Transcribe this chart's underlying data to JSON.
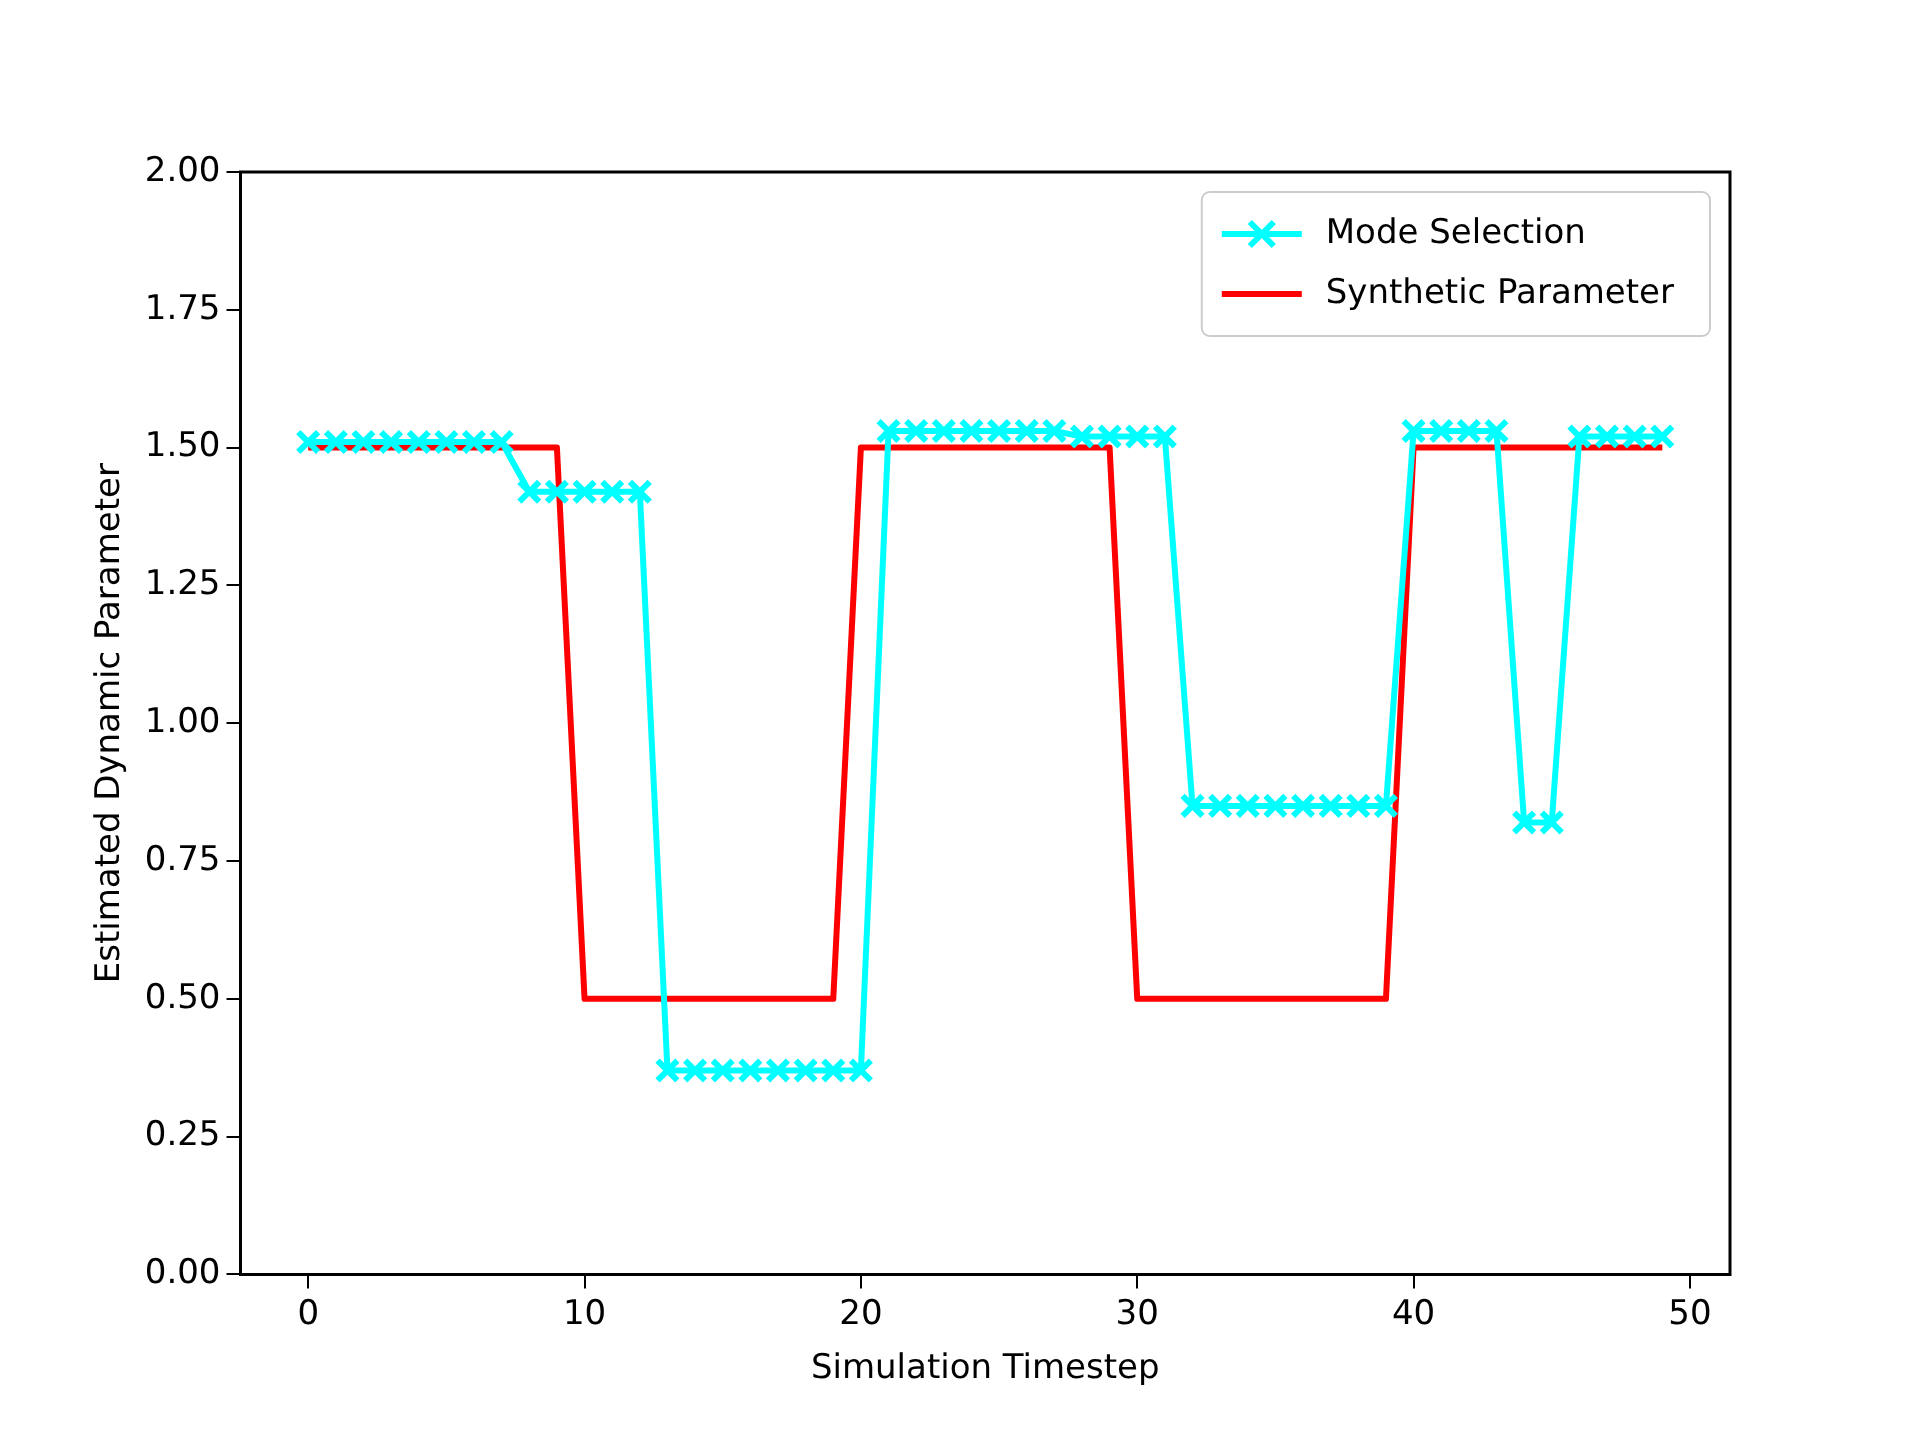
{
  "chart_data": {
    "type": "line",
    "xlabel": "Simulation Timestep",
    "ylabel": "Estimated Dynamic Parameter",
    "x": [
      0,
      1,
      2,
      3,
      4,
      5,
      6,
      7,
      8,
      9,
      10,
      11,
      12,
      13,
      14,
      15,
      16,
      17,
      18,
      19,
      20,
      21,
      22,
      23,
      24,
      25,
      26,
      27,
      28,
      29,
      30,
      31,
      32,
      33,
      34,
      35,
      36,
      37,
      38,
      39,
      40,
      41,
      42,
      43,
      44,
      45,
      46,
      47,
      48,
      49
    ],
    "series": [
      {
        "name": "Mode Selection",
        "color": "#00ffff",
        "marker": "cross",
        "values": [
          1.51,
          1.51,
          1.51,
          1.51,
          1.51,
          1.51,
          1.51,
          1.51,
          1.42,
          1.42,
          1.42,
          1.42,
          1.42,
          0.37,
          0.37,
          0.37,
          0.37,
          0.37,
          0.37,
          0.37,
          0.37,
          1.53,
          1.53,
          1.53,
          1.53,
          1.53,
          1.53,
          1.53,
          1.52,
          1.52,
          1.52,
          1.52,
          0.85,
          0.85,
          0.85,
          0.85,
          0.85,
          0.85,
          0.85,
          0.85,
          1.53,
          1.53,
          1.53,
          1.53,
          0.82,
          0.82,
          1.52,
          1.52,
          1.52,
          1.52
        ]
      },
      {
        "name": "Synthetic Parameter",
        "color": "#ff0000",
        "marker": "none",
        "values": [
          1.5,
          1.5,
          1.5,
          1.5,
          1.5,
          1.5,
          1.5,
          1.5,
          1.5,
          1.5,
          0.5,
          0.5,
          0.5,
          0.5,
          0.5,
          0.5,
          0.5,
          0.5,
          0.5,
          0.5,
          1.5,
          1.5,
          1.5,
          1.5,
          1.5,
          1.5,
          1.5,
          1.5,
          1.5,
          1.5,
          0.5,
          0.5,
          0.5,
          0.5,
          0.5,
          0.5,
          0.5,
          0.5,
          0.5,
          0.5,
          1.5,
          1.5,
          1.5,
          1.5,
          1.5,
          1.5,
          1.5,
          1.5,
          1.5,
          1.5
        ]
      }
    ],
    "xlim": [
      -2.45,
      51.45
    ],
    "xticks": [
      0,
      10,
      20,
      30,
      40,
      50
    ],
    "ylim": [
      0,
      2
    ],
    "yticks": [
      {
        "value": 0,
        "label": "0.00"
      },
      {
        "value": 0.25,
        "label": "0.25"
      },
      {
        "value": 0.5,
        "label": "0.50"
      },
      {
        "value": 0.75,
        "label": "0.75"
      },
      {
        "value": 1,
        "label": "1.00"
      },
      {
        "value": 1.25,
        "label": "1.25"
      },
      {
        "value": 1.5,
        "label": "1.50"
      },
      {
        "value": 1.75,
        "label": "1.75"
      },
      {
        "value": 2,
        "label": "2.00"
      }
    ],
    "grid": false,
    "legend": "top right",
    "line_style": "solid"
  }
}
